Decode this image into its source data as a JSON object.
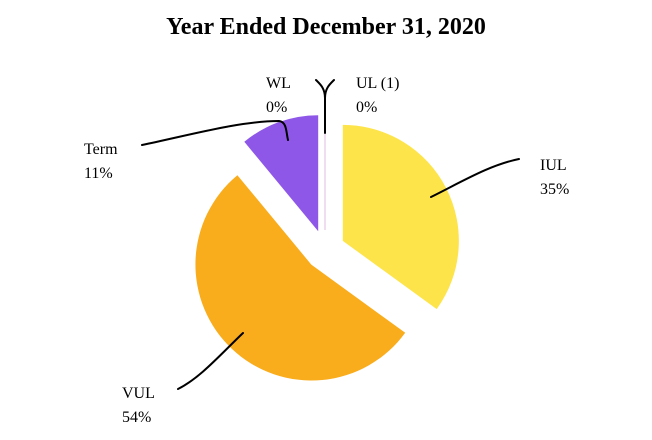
{
  "chart_data": {
    "type": "pie",
    "title": "Year Ended December 31, 2020",
    "start_angle_deg": 0,
    "direction": "clockwise",
    "exploded": true,
    "slices": [
      {
        "label": "IUL",
        "value": 35,
        "display": "35%",
        "color": "#fde44b"
      },
      {
        "label": "VUL",
        "value": 54,
        "display": "54%",
        "color": "#f9ac1c"
      },
      {
        "label": "Term",
        "value": 11,
        "display": "11%",
        "color": "#8e57e8"
      },
      {
        "label": "WL",
        "value": 0,
        "display": "0%",
        "color": "#8e57e8"
      },
      {
        "label": "UL (1)",
        "value": 0,
        "display": "0%",
        "color": "#f2d0e0"
      }
    ],
    "legend": "none",
    "data_labels": "outside with leader lines"
  },
  "labels": {
    "iul": {
      "name": "IUL",
      "pct": "35%"
    },
    "vul": {
      "name": "VUL",
      "pct": "54%"
    },
    "term": {
      "name": "Term",
      "pct": "11%"
    },
    "wl": {
      "name": "WL",
      "pct": "0%"
    },
    "ul": {
      "name": "UL (1)",
      "pct": "0%"
    }
  }
}
